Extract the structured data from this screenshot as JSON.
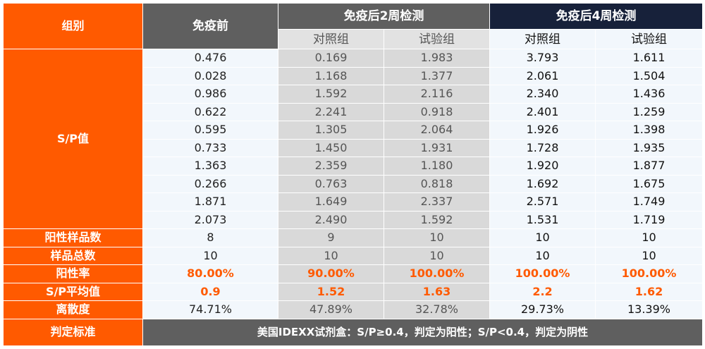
{
  "header": {
    "group_label": "组别",
    "pre_label": "免疫前",
    "week2_label": "免疫后2周检测",
    "week4_label": "免疫后4周检测",
    "control_label": "对照组",
    "test_label": "试验组"
  },
  "sp_label": "S/P值",
  "sp_rows": [
    [
      "0.476",
      "0.169",
      "1.983",
      "3.793",
      "1.611"
    ],
    [
      "0.028",
      "1.168",
      "1.377",
      "2.061",
      "1.504"
    ],
    [
      "0.986",
      "1.592",
      "2.116",
      "2.340",
      "1.436"
    ],
    [
      "0.622",
      "2.241",
      "0.918",
      "2.401",
      "1.259"
    ],
    [
      "0.595",
      "1.305",
      "2.064",
      "1.926",
      "1.398"
    ],
    [
      "0.733",
      "1.450",
      "1.931",
      "1.728",
      "1.935"
    ],
    [
      "1.363",
      "2.359",
      "1.180",
      "1.920",
      "1.877"
    ],
    [
      "0.266",
      "0.763",
      "0.818",
      "1.692",
      "1.675"
    ],
    [
      "1.871",
      "1.649",
      "2.337",
      "2.571",
      "1.749"
    ],
    [
      "2.073",
      "2.490",
      "1.592",
      "1.531",
      "1.719"
    ]
  ],
  "summary_rows": [
    {
      "label": "阳性样品数",
      "values": [
        "8",
        "9",
        "10",
        "10",
        "10"
      ],
      "highlight": false
    },
    {
      "label": "样品总数",
      "values": [
        "10",
        "10",
        "10",
        "10",
        "10"
      ],
      "highlight": false
    },
    {
      "label": "阳性率",
      "values": [
        "80.00%",
        "90.00%",
        "100.00%",
        "100.00%",
        "100.00%"
      ],
      "highlight": true
    },
    {
      "label": "S/P平均值",
      "values": [
        "0.9",
        "1.52",
        "1.63",
        "2.2",
        "1.62"
      ],
      "highlight": true
    },
    {
      "label": "离散度",
      "values": [
        "74.71%",
        "47.89%",
        "32.78%",
        "29.73%",
        "13.39%"
      ],
      "highlight": false
    }
  ],
  "criteria": {
    "label": "判定标准",
    "text": "美国IDEXX试剂盒：S/P≥0.4，判定为阳性；S/P<0.4，判定为阴性"
  },
  "colors": {
    "accent_orange": "#ff5a00",
    "header_gray": "#5f5f5f",
    "header_navy": "#17213a"
  }
}
